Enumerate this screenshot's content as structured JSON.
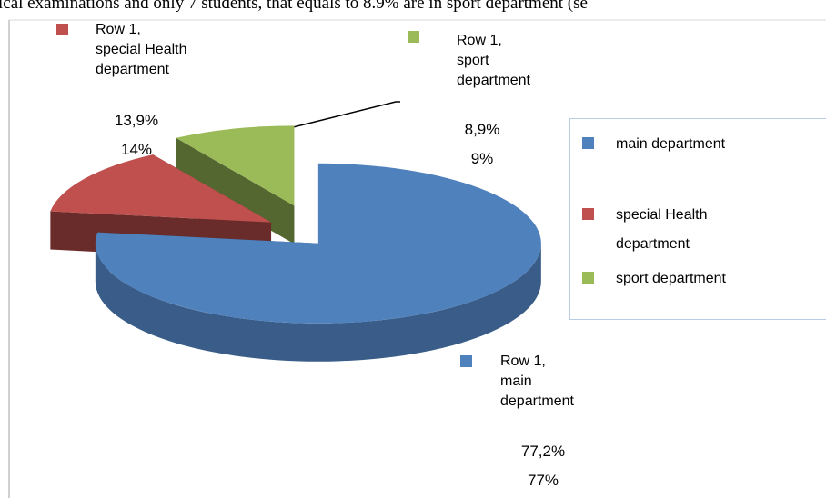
{
  "text_above": "ical examinations and only 7 students, that equals to 8.9% are in sport department (se",
  "chart_data": {
    "type": "pie",
    "three_d": true,
    "categories": [
      "main department",
      "special Health department",
      "sport department"
    ],
    "values": [
      77.2,
      13.9,
      8.9
    ],
    "value_labels": [
      [
        "77,2%",
        "77%"
      ],
      [
        "13,9%",
        "14%"
      ],
      [
        "8,9%",
        "9%"
      ]
    ],
    "data_label_prefix": "Row 1,",
    "colors": [
      "#4f81bd",
      "#c0504d",
      "#9bbb59"
    ],
    "legend": "right"
  }
}
